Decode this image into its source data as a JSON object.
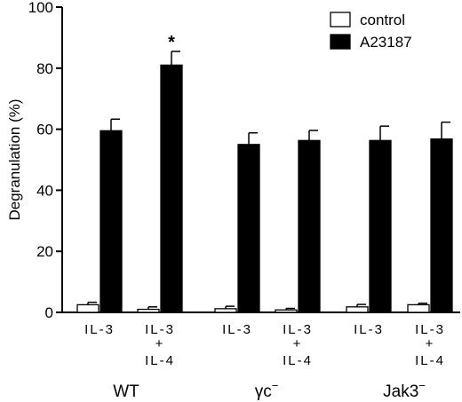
{
  "chart_data": {
    "type": "bar",
    "title": "",
    "ylabel": "Degranulation (%)",
    "xlabel": "",
    "ylim": [
      0,
      100
    ],
    "yticks": [
      "0",
      "20",
      "40",
      "60",
      "80",
      "100"
    ],
    "yticks_values": [
      0,
      20,
      40,
      60,
      80,
      100
    ],
    "legend_position": "top-right",
    "colors": {
      "control": "#ffffff",
      "A23187": "#000000"
    },
    "groups": [
      {
        "label": "WT",
        "categories": [
          {
            "line1": "IL-3",
            "line2": "",
            "line3": ""
          },
          {
            "line1": "IL-3",
            "line2": "+",
            "line3": "IL-4"
          }
        ]
      },
      {
        "label": "γc",
        "superscript": "−",
        "categories": [
          {
            "line1": "IL-3",
            "line2": "",
            "line3": ""
          },
          {
            "line1": "IL-3",
            "line2": "+",
            "line3": "IL-4"
          }
        ]
      },
      {
        "label": "Jak3",
        "superscript": "−",
        "categories": [
          {
            "line1": "IL-3",
            "line2": "",
            "line3": ""
          },
          {
            "line1": "IL-3",
            "line2": "+",
            "line3": "IL-4"
          }
        ]
      }
    ],
    "series": [
      {
        "name": "control",
        "values": [
          2.5,
          1.0,
          1.2,
          0.8,
          1.8,
          2.5
        ],
        "errors": [
          0.8,
          0.8,
          0.8,
          0.5,
          0.8,
          0.5
        ]
      },
      {
        "name": "A23187",
        "values": [
          59.5,
          81.0,
          55.0,
          56.3,
          56.3,
          56.8
        ],
        "errors": [
          3.8,
          4.5,
          3.8,
          3.3,
          4.7,
          5.5
        ]
      }
    ],
    "annotations": [
      {
        "category_index": 1,
        "series": "A23187",
        "text": "*"
      }
    ]
  }
}
